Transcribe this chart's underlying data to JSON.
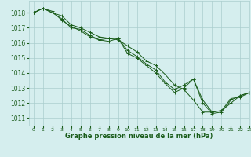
{
  "title": "Graphe pression niveau de la mer (hPa)",
  "background_color": "#d5eeee",
  "grid_color": "#aacece",
  "line_color": "#1a5c1a",
  "xlim": [
    -0.5,
    23
  ],
  "ylim": [
    1010.5,
    1018.8
  ],
  "yticks": [
    1011,
    1012,
    1013,
    1014,
    1015,
    1016,
    1017,
    1018
  ],
  "xticks": [
    0,
    1,
    2,
    3,
    4,
    5,
    6,
    7,
    8,
    9,
    10,
    11,
    12,
    13,
    14,
    15,
    16,
    17,
    18,
    19,
    20,
    21,
    22,
    23
  ],
  "series": [
    [
      1018.0,
      1018.3,
      1018.0,
      1017.8,
      1017.2,
      1017.0,
      1016.7,
      1016.4,
      1016.3,
      1016.2,
      1015.8,
      1015.4,
      1014.8,
      1014.5,
      1013.9,
      1013.2,
      1012.9,
      1012.2,
      1011.4,
      1011.4,
      1011.5,
      1012.0,
      1012.5,
      1012.7
    ],
    [
      1018.0,
      1018.3,
      1018.0,
      1017.6,
      1017.0,
      1016.9,
      1016.5,
      1016.2,
      1016.3,
      1016.3,
      1015.5,
      1015.1,
      1014.6,
      1014.2,
      1013.4,
      1012.9,
      1013.2,
      1013.6,
      1012.2,
      1011.4,
      1011.5,
      1012.3,
      1012.4,
      1012.7
    ],
    [
      1018.0,
      1018.3,
      1018.1,
      1017.5,
      1017.1,
      1016.8,
      1016.4,
      1016.2,
      1016.1,
      1016.3,
      1015.3,
      1015.0,
      1014.5,
      1014.0,
      1013.3,
      1012.7,
      1013.0,
      1013.6,
      1012.0,
      1011.3,
      1011.4,
      1012.2,
      1012.5,
      1012.7
    ]
  ]
}
